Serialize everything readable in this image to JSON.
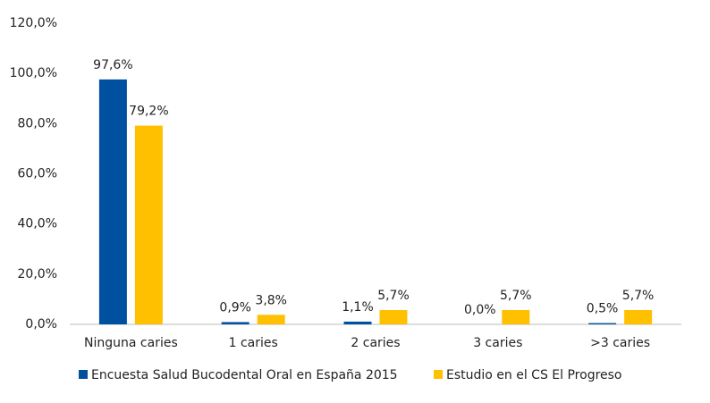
{
  "chart_data": {
    "type": "bar",
    "categories": [
      "Ninguna caries",
      "1 caries",
      "2 caries",
      "3 caries",
      ">3 caries"
    ],
    "series": [
      {
        "name": "Encuesta Salud Bucodental Oral en España 2015",
        "color": "#0050a0",
        "values": [
          97.6,
          0.9,
          1.1,
          0.0,
          0.5
        ],
        "value_labels": [
          "97,6%",
          "0,9%",
          "1,1%",
          "0,0%",
          "0,5%"
        ]
      },
      {
        "name": "Estudio en el CS El Progreso",
        "color": "#ffc000",
        "values": [
          79.2,
          3.8,
          5.7,
          5.7,
          5.7
        ],
        "value_labels": [
          "79,2%",
          "3,8%",
          "5,7%",
          "5,7%",
          "5,7%"
        ]
      }
    ],
    "ylim": [
      0,
      120
    ],
    "yticks": [
      {
        "value": 0,
        "label": "0,0%"
      },
      {
        "value": 20,
        "label": "20,0%"
      },
      {
        "value": 40,
        "label": "40,0%"
      },
      {
        "value": 60,
        "label": "60,0%"
      },
      {
        "value": 80,
        "label": "80,0%"
      },
      {
        "value": 100,
        "label": "100,0%"
      },
      {
        "value": 120,
        "label": "120,0%"
      }
    ],
    "grid": false,
    "legend": "bottom"
  }
}
